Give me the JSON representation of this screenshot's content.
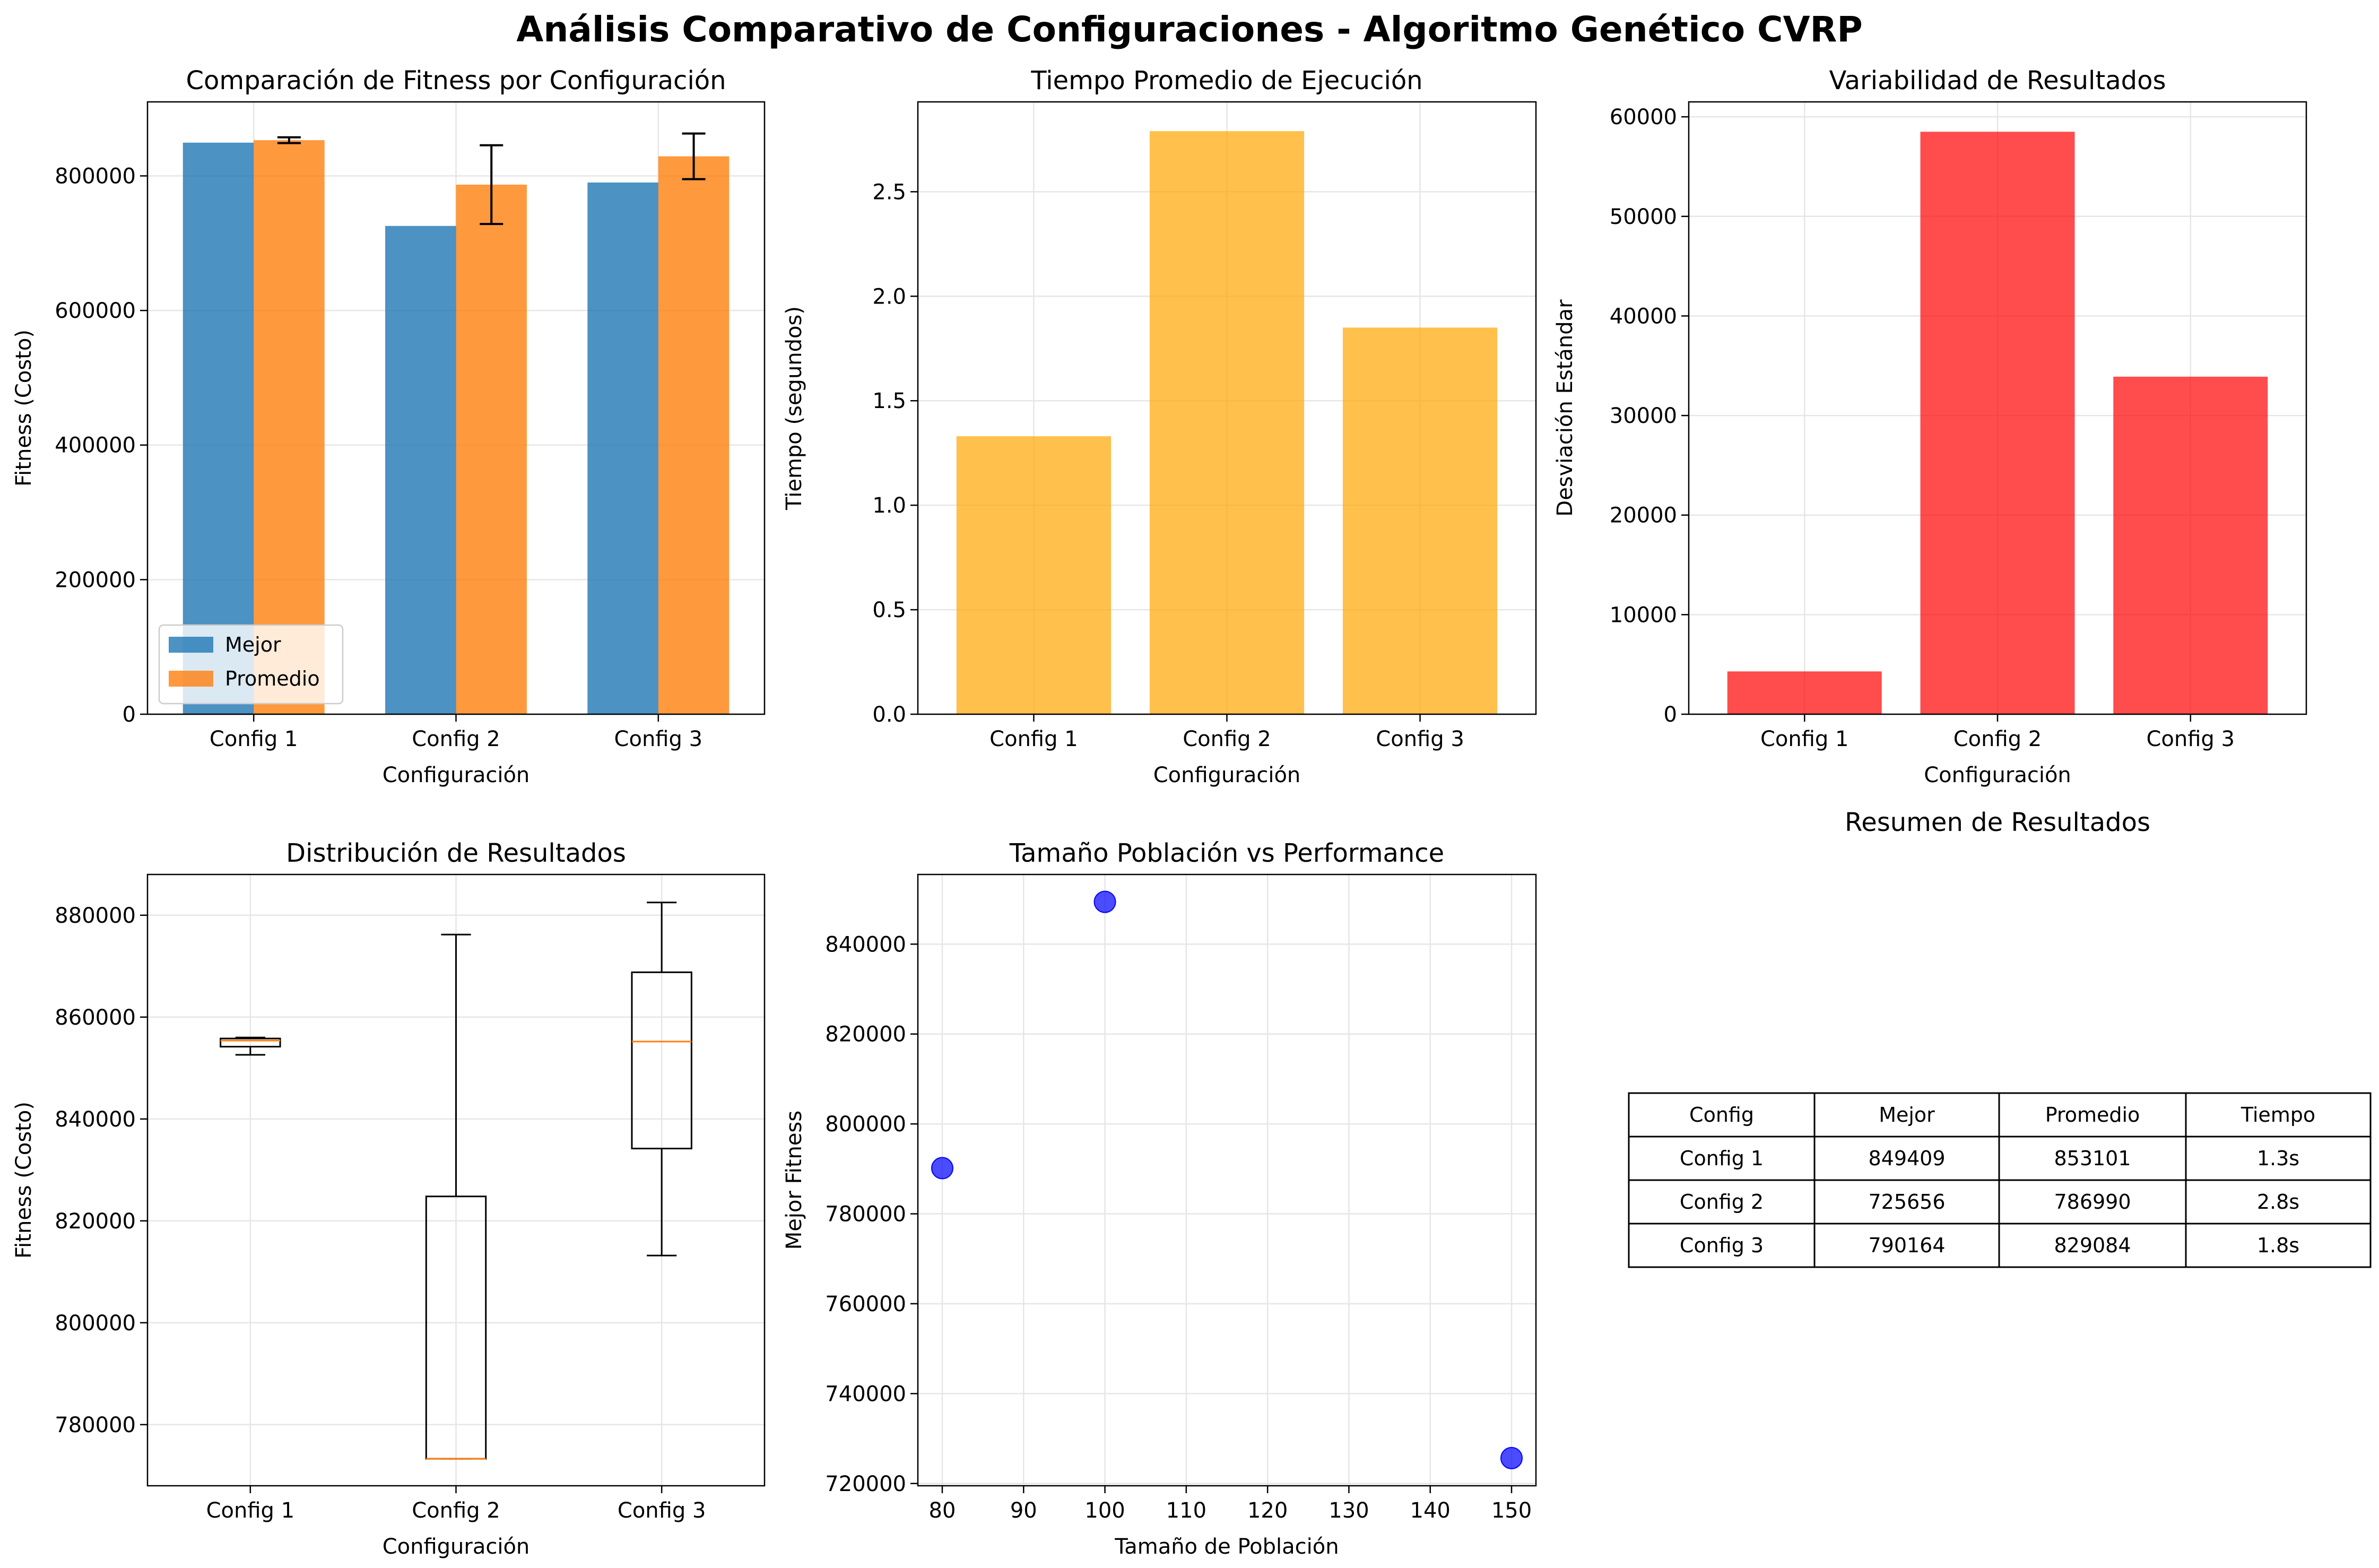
{
  "figure": {
    "suptitle": "Análisis Comparativo de Configuraciones - Algoritmo Genético CVRP"
  },
  "colors": {
    "mejor": "#1f77b4",
    "promedio": "#ff7f0e",
    "tiempo": "#ffa500",
    "variabilidad": "#ff0000",
    "scatter": "#0000ff",
    "median": "#ff7f0e",
    "grid": "#e6e6e6"
  },
  "chart_data": [
    {
      "id": "fitness",
      "type": "bar",
      "title": "Comparación de Fitness por Configuración",
      "xlabel": "Configuración",
      "ylabel": "Fitness (Costo)",
      "categories": [
        "Config 1",
        "Config 2",
        "Config 3"
      ],
      "series": [
        {
          "name": "Mejor",
          "values": [
            849409,
            725656,
            790164
          ]
        },
        {
          "name": "Promedio",
          "values": [
            853101,
            786990,
            829084
          ],
          "error": [
            4300,
            58500,
            33900
          ]
        }
      ],
      "ylim": [
        0,
        910000
      ],
      "yticks": [
        0,
        200000,
        400000,
        600000,
        800000
      ],
      "ytick_labels": [
        "0",
        "200000",
        "400000",
        "600000",
        "800000"
      ],
      "legend_position": "lower-left",
      "grid": true
    },
    {
      "id": "tiempo",
      "type": "bar",
      "title": "Tiempo Promedio de Ejecución",
      "xlabel": "Configuración",
      "ylabel": "Tiempo (segundos)",
      "categories": [
        "Config 1",
        "Config 2",
        "Config 3"
      ],
      "values": [
        1.33,
        2.79,
        1.85
      ],
      "ylim": [
        0,
        2.93
      ],
      "yticks": [
        0,
        0.5,
        1.0,
        1.5,
        2.0,
        2.5
      ],
      "ytick_labels": [
        "0.0",
        "0.5",
        "1.0",
        "1.5",
        "2.0",
        "2.5"
      ],
      "grid": true
    },
    {
      "id": "variabilidad",
      "type": "bar",
      "title": "Variabilidad de Resultados",
      "xlabel": "Configuración",
      "ylabel": "Desviación Estándar",
      "categories": [
        "Config 1",
        "Config 2",
        "Config 3"
      ],
      "values": [
        4300,
        58500,
        33900
      ],
      "ylim": [
        0,
        61500
      ],
      "yticks": [
        0,
        10000,
        20000,
        30000,
        40000,
        50000,
        60000
      ],
      "ytick_labels": [
        "0",
        "10000",
        "20000",
        "30000",
        "40000",
        "50000",
        "60000"
      ],
      "grid": true
    },
    {
      "id": "distribucion",
      "type": "box",
      "title": "Distribución de Resultados",
      "xlabel": "Configuración",
      "ylabel": "Fitness (Costo)",
      "categories": [
        "Config 1",
        "Config 2",
        "Config 3"
      ],
      "boxes": [
        {
          "whislo": 852600,
          "q1": 854200,
          "med": 855400,
          "q3": 855800,
          "whishi": 856000
        },
        {
          "whislo": 773300,
          "q1": 773300,
          "med": 773300,
          "q3": 824800,
          "whishi": 876200
        },
        {
          "whislo": 813200,
          "q1": 834200,
          "med": 855200,
          "q3": 868800,
          "whishi": 882500
        }
      ],
      "ylim": [
        768000,
        888000
      ],
      "yticks": [
        780000,
        800000,
        820000,
        840000,
        860000,
        880000
      ],
      "ytick_labels": [
        "780000",
        "800000",
        "820000",
        "840000",
        "860000",
        "880000"
      ],
      "grid": true
    },
    {
      "id": "poblacion",
      "type": "scatter",
      "title": "Tamaño Población vs Performance",
      "xlabel": "Tamaño de Población",
      "ylabel": "Mejor Fitness",
      "x": [
        80,
        100,
        150
      ],
      "y": [
        790164,
        849409,
        725656
      ],
      "xlim": [
        77,
        153
      ],
      "ylim": [
        719500,
        855500
      ],
      "xticks": [
        80,
        90,
        100,
        110,
        120,
        130,
        140,
        150
      ],
      "xtick_labels": [
        "80",
        "90",
        "100",
        "110",
        "120",
        "130",
        "140",
        "150"
      ],
      "yticks": [
        720000,
        740000,
        760000,
        780000,
        800000,
        820000,
        840000
      ],
      "ytick_labels": [
        "720000",
        "740000",
        "760000",
        "780000",
        "800000",
        "820000",
        "840000"
      ],
      "grid": true
    },
    {
      "id": "resumen",
      "type": "table",
      "title": "Resumen de Resultados",
      "columns": [
        "Config",
        "Mejor",
        "Promedio",
        "Tiempo"
      ],
      "rows": [
        [
          "Config 1",
          "849409",
          "853101",
          "1.3s"
        ],
        [
          "Config 2",
          "725656",
          "786990",
          "2.8s"
        ],
        [
          "Config 3",
          "790164",
          "829084",
          "1.8s"
        ]
      ]
    }
  ]
}
